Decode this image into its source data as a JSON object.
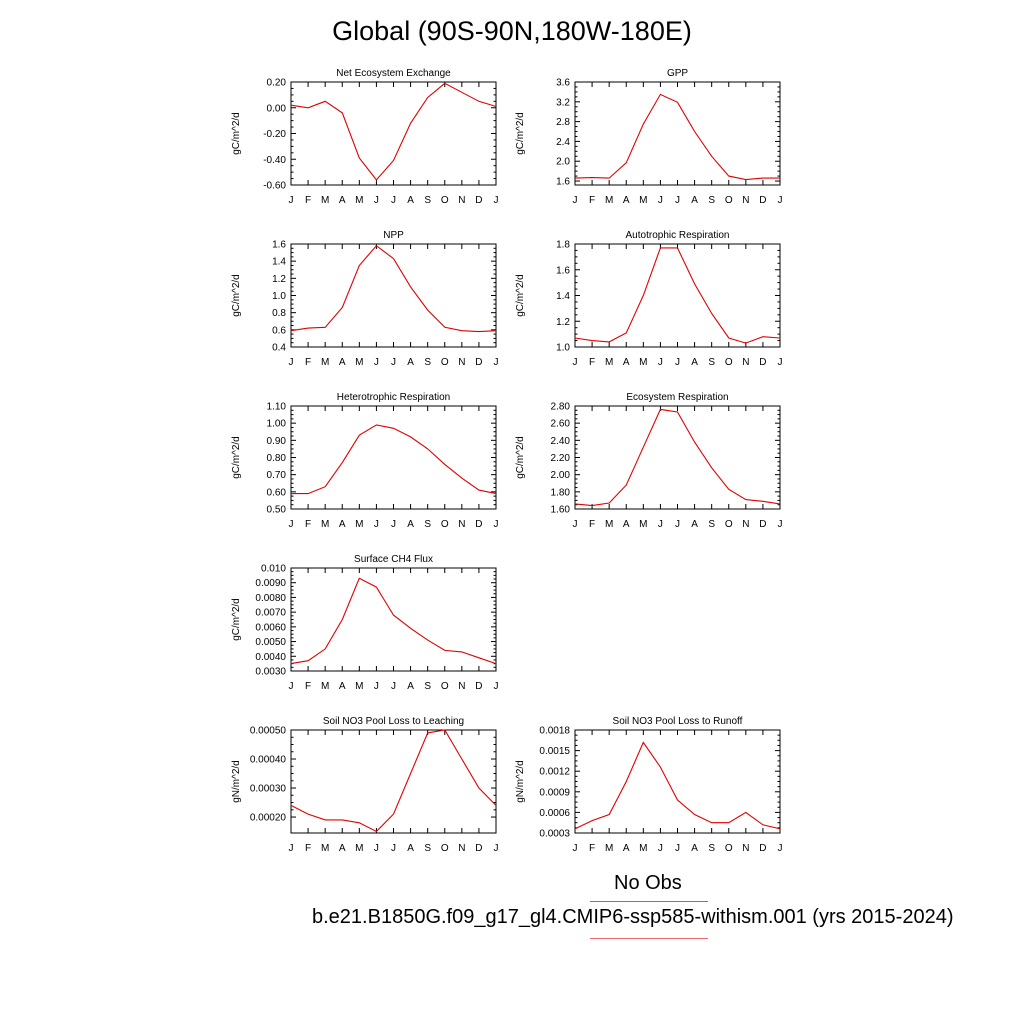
{
  "title": "Global (90S-90N,180W-180E)",
  "legend": {
    "obs_label": "No Obs",
    "case_label": "b.e21.B1850G.f09_g17_gl4.CMIP6-ssp585-withism.001 (yrs 2015-2024)",
    "obs_color": "#6b6bf0",
    "case_color": "#f06b6b"
  },
  "chart_data": [
    {
      "type": "line",
      "title": "Net Ecosystem Exchange",
      "ylabel": "gC/m^2/d",
      "categories": [
        "J",
        "F",
        "M",
        "A",
        "M",
        "J",
        "J",
        "A",
        "S",
        "O",
        "N",
        "D",
        "J"
      ],
      "series": [
        {
          "values": [
            0.02,
            0.0,
            0.05,
            -0.04,
            -0.39,
            -0.56,
            -0.41,
            -0.12,
            0.08,
            0.19,
            0.12,
            0.05,
            0.01
          ],
          "color": "#e00000"
        }
      ],
      "ylim": [
        -0.6,
        0.2
      ],
      "yticks": [
        0.2,
        0.0,
        -0.2,
        -0.4,
        -0.6
      ],
      "yticklabels": [
        "0.20",
        "0.00",
        "-0.20",
        "-0.40",
        "-0.60"
      ]
    },
    {
      "type": "line",
      "title": "GPP",
      "ylabel": "gC/m^2/d",
      "categories": [
        "J",
        "F",
        "M",
        "A",
        "M",
        "J",
        "J",
        "A",
        "S",
        "O",
        "N",
        "D",
        "J"
      ],
      "series": [
        {
          "values": [
            1.66,
            1.67,
            1.66,
            1.97,
            2.75,
            3.35,
            3.19,
            2.6,
            2.1,
            1.7,
            1.63,
            1.66,
            1.66
          ],
          "color": "#e00000"
        }
      ],
      "ylim": [
        1.52,
        3.6
      ],
      "yticks": [
        3.6,
        3.2,
        2.8,
        2.4,
        2.0,
        1.6
      ],
      "yticklabels": [
        "3.6",
        "3.2",
        "2.8",
        "2.4",
        "2.0",
        "1.6"
      ]
    },
    {
      "type": "line",
      "title": "NPP",
      "ylabel": "gC/m^2/d",
      "categories": [
        "J",
        "F",
        "M",
        "A",
        "M",
        "J",
        "J",
        "A",
        "S",
        "O",
        "N",
        "D",
        "J"
      ],
      "series": [
        {
          "values": [
            0.59,
            0.62,
            0.63,
            0.86,
            1.35,
            1.58,
            1.43,
            1.1,
            0.83,
            0.63,
            0.59,
            0.58,
            0.59
          ],
          "color": "#e00000"
        }
      ],
      "ylim": [
        0.4,
        1.6
      ],
      "yticks": [
        1.6,
        1.4,
        1.2,
        1.0,
        0.8,
        0.6,
        0.4
      ],
      "yticklabels": [
        "1.6",
        "1.4",
        "1.2",
        "1.0",
        "0.8",
        "0.6",
        "0.4"
      ]
    },
    {
      "type": "line",
      "title": "Autotrophic Respiration",
      "ylabel": "gC/m^2/d",
      "categories": [
        "J",
        "F",
        "M",
        "A",
        "M",
        "J",
        "J",
        "A",
        "S",
        "O",
        "N",
        "D",
        "J"
      ],
      "series": [
        {
          "values": [
            1.07,
            1.05,
            1.04,
            1.11,
            1.4,
            1.77,
            1.77,
            1.49,
            1.26,
            1.07,
            1.03,
            1.08,
            1.07
          ],
          "color": "#e00000"
        }
      ],
      "ylim": [
        1.0,
        1.8
      ],
      "yticks": [
        1.8,
        1.6,
        1.4,
        1.2,
        1.0
      ],
      "yticklabels": [
        "1.8",
        "1.6",
        "1.4",
        "1.2",
        "1.0"
      ]
    },
    {
      "type": "line",
      "title": "Heterotrophic Respiration",
      "ylabel": "gC/m^2/d",
      "categories": [
        "J",
        "F",
        "M",
        "A",
        "M",
        "J",
        "J",
        "A",
        "S",
        "O",
        "N",
        "D",
        "J"
      ],
      "series": [
        {
          "values": [
            0.59,
            0.59,
            0.63,
            0.77,
            0.93,
            0.99,
            0.97,
            0.92,
            0.85,
            0.76,
            0.68,
            0.61,
            0.59
          ],
          "color": "#e00000"
        }
      ],
      "ylim": [
        0.5,
        1.1
      ],
      "yticks": [
        1.1,
        1.0,
        0.9,
        0.8,
        0.7,
        0.6,
        0.5
      ],
      "yticklabels": [
        "1.10",
        "1.00",
        "0.90",
        "0.80",
        "0.70",
        "0.60",
        "0.50"
      ]
    },
    {
      "type": "line",
      "title": "Ecosystem Respiration",
      "ylabel": "gC/m^2/d",
      "categories": [
        "J",
        "F",
        "M",
        "A",
        "M",
        "J",
        "J",
        "A",
        "S",
        "O",
        "N",
        "D",
        "J"
      ],
      "series": [
        {
          "values": [
            1.66,
            1.64,
            1.67,
            1.88,
            2.32,
            2.76,
            2.73,
            2.38,
            2.08,
            1.83,
            1.71,
            1.69,
            1.66
          ],
          "color": "#e00000"
        }
      ],
      "ylim": [
        1.6,
        2.8
      ],
      "yticks": [
        2.8,
        2.6,
        2.4,
        2.2,
        2.0,
        1.8,
        1.6
      ],
      "yticklabels": [
        "2.80",
        "2.60",
        "2.40",
        "2.20",
        "2.00",
        "1.80",
        "1.60"
      ]
    },
    {
      "type": "line",
      "title": "Surface CH4 Flux",
      "ylabel": "gC/m^2/d",
      "categories": [
        "J",
        "F",
        "M",
        "A",
        "M",
        "J",
        "J",
        "A",
        "S",
        "O",
        "N",
        "D",
        "J"
      ],
      "series": [
        {
          "values": [
            0.0035,
            0.0037,
            0.0045,
            0.0065,
            0.0093,
            0.0087,
            0.0068,
            0.0059,
            0.0051,
            0.0044,
            0.0043,
            0.0039,
            0.0035
          ],
          "color": "#e00000"
        }
      ],
      "ylim": [
        0.003,
        0.01
      ],
      "yticks": [
        0.01,
        0.009,
        0.008,
        0.007,
        0.006,
        0.005,
        0.004,
        0.003
      ],
      "yticklabels": [
        "0.010",
        "0.0090",
        "0.0080",
        "0.0070",
        "0.0060",
        "0.0050",
        "0.0040",
        "0.0030"
      ]
    },
    {
      "type": "line",
      "title": "Soil NO3 Pool Loss to Leaching",
      "ylabel": "gN/m^2/d",
      "categories": [
        "J",
        "F",
        "M",
        "A",
        "M",
        "J",
        "J",
        "A",
        "S",
        "O",
        "N",
        "D",
        "J"
      ],
      "series": [
        {
          "values": [
            0.00024,
            0.00021,
            0.00019,
            0.00019,
            0.00018,
            0.00015,
            0.00021,
            0.00035,
            0.00049,
            0.0005,
            0.0004,
            0.0003,
            0.00024
          ],
          "color": "#e00000"
        }
      ],
      "ylim": [
        0.000145,
        0.0005
      ],
      "yticks": [
        0.0005,
        0.0004,
        0.0003,
        0.0002
      ],
      "yticklabels": [
        "0.00050",
        "0.00040",
        "0.00030",
        "0.00020"
      ]
    },
    {
      "type": "line",
      "title": "Soil NO3 Pool Loss to Runoff",
      "ylabel": "gN/m^2/d",
      "categories": [
        "J",
        "F",
        "M",
        "A",
        "M",
        "J",
        "J",
        "A",
        "S",
        "O",
        "N",
        "D",
        "J"
      ],
      "series": [
        {
          "values": [
            0.00036,
            0.00048,
            0.00057,
            0.00105,
            0.00162,
            0.00126,
            0.00078,
            0.00057,
            0.00045,
            0.00045,
            0.0006,
            0.00042,
            0.00036
          ],
          "color": "#e00000"
        }
      ],
      "ylim": [
        0.0003,
        0.0018
      ],
      "yticks": [
        0.0018,
        0.0015,
        0.0012,
        0.0009,
        0.0006,
        0.0003
      ],
      "yticklabels": [
        "0.0018",
        "0.0015",
        "0.0012",
        "0.0009",
        "0.0006",
        "0.0003"
      ]
    }
  ]
}
